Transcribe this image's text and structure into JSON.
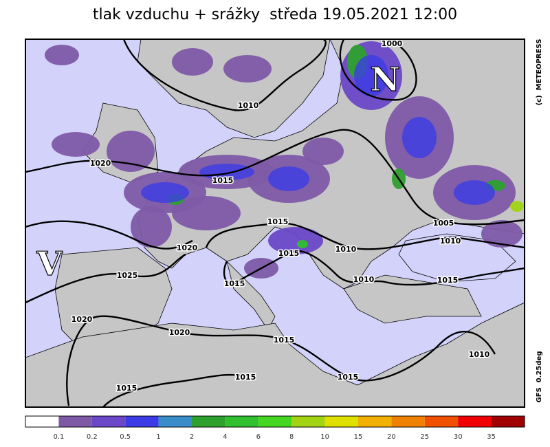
{
  "title": "tlak vzduchu + srážky  středa 19.05.2021 12:00",
  "credit": "(c)  METEOPRESS",
  "model": "GFS  0.25deg",
  "pressure_centers": [
    "V",
    "N"
  ],
  "isobar_labels": [
    1000,
    1010,
    1020,
    1015,
    1015,
    1020,
    1015,
    1010,
    1005,
    1010,
    1025,
    1015,
    1010,
    1015,
    1020,
    1020,
    1015,
    1015,
    1015,
    1015,
    1010
  ],
  "legend": {
    "thresholds": [
      0.1,
      0.2,
      0.5,
      1,
      2,
      4,
      6,
      8,
      10,
      15,
      20,
      25,
      30,
      35
    ],
    "colors": [
      "#ffffff",
      "#7e5aa6",
      "#6a48c8",
      "#3c3ce6",
      "#3a8cc8",
      "#2ea02e",
      "#2fbf2f",
      "#44d620",
      "#a2d414",
      "#e0e000",
      "#f2b000",
      "#f08000",
      "#f05000",
      "#f00000",
      "#a00000"
    ]
  }
}
